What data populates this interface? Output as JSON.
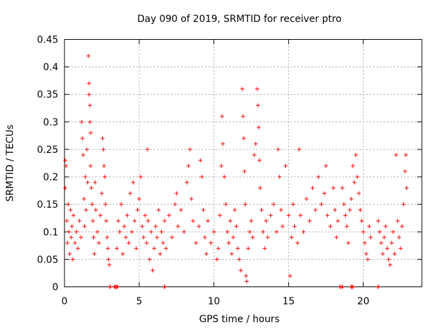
{
  "chart_data": {
    "type": "scatter",
    "title": "Day 090 of 2019, SRMTID for receiver ptro",
    "xlabel": "GPS time / hours",
    "ylabel": "SRMTID / TECUs",
    "xlim": [
      0,
      23.92
    ],
    "ylim": [
      0,
      0.45
    ],
    "grid": true,
    "marker": "+",
    "color": "#ff0000",
    "x_ticks": [
      0,
      5,
      10,
      15,
      20
    ],
    "x_tick_labels": [
      "0",
      "5",
      "10",
      "15",
      "20"
    ],
    "y_ticks": [
      0,
      0.05,
      0.1,
      0.15,
      0.2,
      0.25,
      0.3,
      0.35,
      0.4,
      0.45
    ],
    "y_tick_labels": [
      "0",
      "0.05",
      "0.1",
      "0.15",
      "0.2",
      "0.25",
      "0.3",
      "0.35",
      "0.4",
      "0.45"
    ],
    "series": [
      {
        "name": "SRMTID",
        "points": [
          [
            0.05,
            0.23
          ],
          [
            0.05,
            0.18
          ],
          [
            0.1,
            0.22
          ],
          [
            0.15,
            0.12
          ],
          [
            0.2,
            0.08
          ],
          [
            0.25,
            0.15
          ],
          [
            0.3,
            0.1
          ],
          [
            0.35,
            0.06
          ],
          [
            0.4,
            0.14
          ],
          [
            0.45,
            0.09
          ],
          [
            0.5,
            0.11
          ],
          [
            0.55,
            0.05
          ],
          [
            0.6,
            0.13
          ],
          [
            0.7,
            0.08
          ],
          [
            0.8,
            0.1
          ],
          [
            0.9,
            0.07
          ],
          [
            1.0,
            0.12
          ],
          [
            1.1,
            0.09
          ],
          [
            1.15,
            0.3
          ],
          [
            1.2,
            0.27
          ],
          [
            1.25,
            0.24
          ],
          [
            1.3,
            0.16
          ],
          [
            1.35,
            0.11
          ],
          [
            1.4,
            0.2
          ],
          [
            1.45,
            0.14
          ],
          [
            1.5,
            0.25
          ],
          [
            1.55,
            0.19
          ],
          [
            1.6,
            0.42
          ],
          [
            1.65,
            0.37
          ],
          [
            1.65,
            0.35
          ],
          [
            1.7,
            0.33
          ],
          [
            1.7,
            0.3
          ],
          [
            1.75,
            0.28
          ],
          [
            1.75,
            0.22
          ],
          [
            1.8,
            0.18
          ],
          [
            1.85,
            0.15
          ],
          [
            1.9,
            0.12
          ],
          [
            1.95,
            0.09
          ],
          [
            2.0,
            0.06
          ],
          [
            2.05,
            0.19
          ],
          [
            2.1,
            0.14
          ],
          [
            2.2,
            0.1
          ],
          [
            2.3,
            0.08
          ],
          [
            2.4,
            0.13
          ],
          [
            2.5,
            0.17
          ],
          [
            2.55,
            0.27
          ],
          [
            2.6,
            0.25
          ],
          [
            2.65,
            0.22
          ],
          [
            2.7,
            0.2
          ],
          [
            2.75,
            0.15
          ],
          [
            2.8,
            0.12
          ],
          [
            2.85,
            0.09
          ],
          [
            2.9,
            0.07
          ],
          [
            2.95,
            0.05
          ],
          [
            3.0,
            0.04
          ],
          [
            3.5,
            0.07
          ],
          [
            3.6,
            0.12
          ],
          [
            3.7,
            0.1
          ],
          [
            3.8,
            0.15
          ],
          [
            3.9,
            0.06
          ],
          [
            4.0,
            0.11
          ],
          [
            4.1,
            0.09
          ],
          [
            4.2,
            0.13
          ],
          [
            4.3,
            0.08
          ],
          [
            4.4,
            0.17
          ],
          [
            4.5,
            0.1
          ],
          [
            4.6,
            0.19
          ],
          [
            4.7,
            0.12
          ],
          [
            4.8,
            0.07
          ],
          [
            4.9,
            0.14
          ],
          [
            5.0,
            0.16
          ],
          [
            5.1,
            0.2
          ],
          [
            5.2,
            0.11
          ],
          [
            5.3,
            0.09
          ],
          [
            5.4,
            0.13
          ],
          [
            5.5,
            0.08
          ],
          [
            5.55,
            0.25
          ],
          [
            5.6,
            0.12
          ],
          [
            5.7,
            0.05
          ],
          [
            5.8,
            0.1
          ],
          [
            5.9,
            0.03
          ],
          [
            6.0,
            0.07
          ],
          [
            6.1,
            0.11
          ],
          [
            6.2,
            0.09
          ],
          [
            6.3,
            0.14
          ],
          [
            6.4,
            0.06
          ],
          [
            6.5,
            0.1
          ],
          [
            6.6,
            0.08
          ],
          [
            6.7,
            0.12
          ],
          [
            6.8,
            0.07
          ],
          [
            7.0,
            0.13
          ],
          [
            7.2,
            0.09
          ],
          [
            7.4,
            0.15
          ],
          [
            7.5,
            0.17
          ],
          [
            7.6,
            0.11
          ],
          [
            7.8,
            0.14
          ],
          [
            8.0,
            0.1
          ],
          [
            8.2,
            0.19
          ],
          [
            8.3,
            0.22
          ],
          [
            8.4,
            0.25
          ],
          [
            8.5,
            0.16
          ],
          [
            8.6,
            0.12
          ],
          [
            8.8,
            0.08
          ],
          [
            9.0,
            0.11
          ],
          [
            9.1,
            0.23
          ],
          [
            9.2,
            0.2
          ],
          [
            9.3,
            0.14
          ],
          [
            9.4,
            0.09
          ],
          [
            9.5,
            0.06
          ],
          [
            9.6,
            0.12
          ],
          [
            9.8,
            0.08
          ],
          [
            10.0,
            0.1
          ],
          [
            10.2,
            0.05
          ],
          [
            10.3,
            0.07
          ],
          [
            10.4,
            0.13
          ],
          [
            10.5,
            0.22
          ],
          [
            10.55,
            0.31
          ],
          [
            10.6,
            0.26
          ],
          [
            10.7,
            0.2
          ],
          [
            10.8,
            0.15
          ],
          [
            10.9,
            0.1
          ],
          [
            11.0,
            0.08
          ],
          [
            11.1,
            0.12
          ],
          [
            11.2,
            0.06
          ],
          [
            11.3,
            0.09
          ],
          [
            11.4,
            0.14
          ],
          [
            11.5,
            0.11
          ],
          [
            11.6,
            0.07
          ],
          [
            11.7,
            0.05
          ],
          [
            11.8,
            0.03
          ],
          [
            11.9,
            0.36
          ],
          [
            11.95,
            0.31
          ],
          [
            12.0,
            0.27
          ],
          [
            12.05,
            0.21
          ],
          [
            12.1,
            0.15
          ],
          [
            12.15,
            0.02
          ],
          [
            12.2,
            0.01
          ],
          [
            12.3,
            0.07
          ],
          [
            12.4,
            0.1
          ],
          [
            12.5,
            0.12
          ],
          [
            12.6,
            0.09
          ],
          [
            12.7,
            0.24
          ],
          [
            12.8,
            0.26
          ],
          [
            12.9,
            0.36
          ],
          [
            12.95,
            0.33
          ],
          [
            13.0,
            0.29
          ],
          [
            13.05,
            0.23
          ],
          [
            13.1,
            0.18
          ],
          [
            13.2,
            0.14
          ],
          [
            13.3,
            0.1
          ],
          [
            13.4,
            0.07
          ],
          [
            13.5,
            0.12
          ],
          [
            13.6,
            0.09
          ],
          [
            13.8,
            0.13
          ],
          [
            14.0,
            0.15
          ],
          [
            14.2,
            0.1
          ],
          [
            14.3,
            0.25
          ],
          [
            14.4,
            0.2
          ],
          [
            14.5,
            0.14
          ],
          [
            14.6,
            0.11
          ],
          [
            14.8,
            0.22
          ],
          [
            15.0,
            0.13
          ],
          [
            15.1,
            0.02
          ],
          [
            15.2,
            0.09
          ],
          [
            15.3,
            0.15
          ],
          [
            15.4,
            0.11
          ],
          [
            15.6,
            0.08
          ],
          [
            15.7,
            0.25
          ],
          [
            15.8,
            0.13
          ],
          [
            16.0,
            0.1
          ],
          [
            16.2,
            0.16
          ],
          [
            16.4,
            0.12
          ],
          [
            16.6,
            0.18
          ],
          [
            16.8,
            0.14
          ],
          [
            17.0,
            0.2
          ],
          [
            17.2,
            0.15
          ],
          [
            17.4,
            0.17
          ],
          [
            17.5,
            0.22
          ],
          [
            17.6,
            0.13
          ],
          [
            17.8,
            0.11
          ],
          [
            18.0,
            0.18
          ],
          [
            18.1,
            0.14
          ],
          [
            18.2,
            0.09
          ],
          [
            18.3,
            0.12
          ],
          [
            18.6,
            0.18
          ],
          [
            18.7,
            0.15
          ],
          [
            18.8,
            0.13
          ],
          [
            18.9,
            0.11
          ],
          [
            19.0,
            0.08
          ],
          [
            19.1,
            0.14
          ],
          [
            19.2,
            0.16
          ],
          [
            19.3,
            0.22
          ],
          [
            19.4,
            0.19
          ],
          [
            19.5,
            0.24
          ],
          [
            19.6,
            0.2
          ],
          [
            19.7,
            0.17
          ],
          [
            19.8,
            0.14
          ],
          [
            19.9,
            0.12
          ],
          [
            20.0,
            0.1
          ],
          [
            20.1,
            0.08
          ],
          [
            20.2,
            0.06
          ],
          [
            20.3,
            0.05
          ],
          [
            20.4,
            0.11
          ],
          [
            20.5,
            0.09
          ],
          [
            21.0,
            0.12
          ],
          [
            21.1,
            0.1
          ],
          [
            21.2,
            0.08
          ],
          [
            21.3,
            0.06
          ],
          [
            21.4,
            0.09
          ],
          [
            21.5,
            0.11
          ],
          [
            21.6,
            0.07
          ],
          [
            21.7,
            0.05
          ],
          [
            21.8,
            0.04
          ],
          [
            21.9,
            0.08
          ],
          [
            22.0,
            0.1
          ],
          [
            22.1,
            0.06
          ],
          [
            22.2,
            0.24
          ],
          [
            22.3,
            0.12
          ],
          [
            22.4,
            0.09
          ],
          [
            22.5,
            0.07
          ],
          [
            22.6,
            0.11
          ],
          [
            22.7,
            0.15
          ],
          [
            22.8,
            0.21
          ],
          [
            22.85,
            0.24
          ],
          [
            22.9,
            0.18
          ]
        ]
      }
    ],
    "zero_markers_x": [
      3.05,
      3.35,
      3.45,
      3.55,
      6.7,
      18.45,
      18.6,
      19.2,
      19.3,
      21.0
    ]
  }
}
